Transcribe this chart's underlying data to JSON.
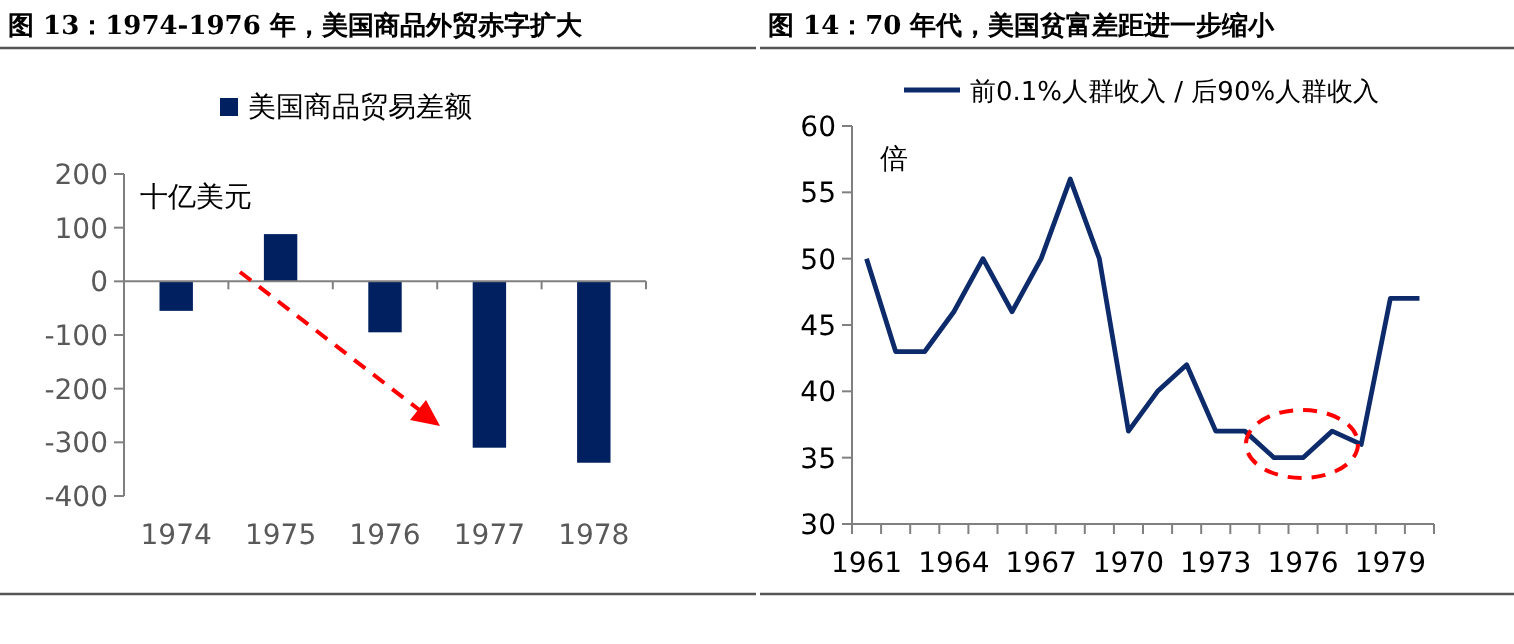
{
  "chart_data": [
    {
      "type": "bar",
      "title": "图 13：1974-1976 年，美国商品外贸赤字扩大",
      "ylabel": "十亿美元",
      "categories": [
        "1974",
        "1975",
        "1976",
        "1977",
        "1978"
      ],
      "series": [
        {
          "name": "美国商品贸易差额",
          "color": "#002060",
          "values": [
            -55,
            88,
            -95,
            -310,
            -338
          ]
        }
      ],
      "ylim": [
        -400,
        200
      ],
      "yticks": [
        -400,
        -300,
        -200,
        -100,
        0,
        100,
        200
      ],
      "legend": "top"
    },
    {
      "type": "line",
      "title": "图 14：70 年代，美国贫富差距进一步缩小",
      "ylabel": "倍",
      "categories": [
        "1961",
        null,
        null,
        "1964",
        null,
        null,
        "1967",
        null,
        null,
        "1970",
        null,
        null,
        "1973",
        null,
        null,
        "1976",
        null,
        null,
        "1979",
        null
      ],
      "series": [
        {
          "name": "前0.1%人群收入 / 后90%人群收入",
          "color": "#0d2a6b",
          "values": [
            50,
            43,
            43,
            46,
            50,
            46,
            50,
            56,
            50,
            37,
            40,
            42,
            37,
            37,
            35,
            35,
            37,
            36,
            47,
            47
          ]
        }
      ],
      "ylim": [
        30,
        60
      ],
      "yticks": [
        30,
        35,
        40,
        45,
        50,
        55,
        60
      ],
      "grid": false,
      "legend": "top",
      "marker": "none",
      "line_style": "solid"
    }
  ]
}
